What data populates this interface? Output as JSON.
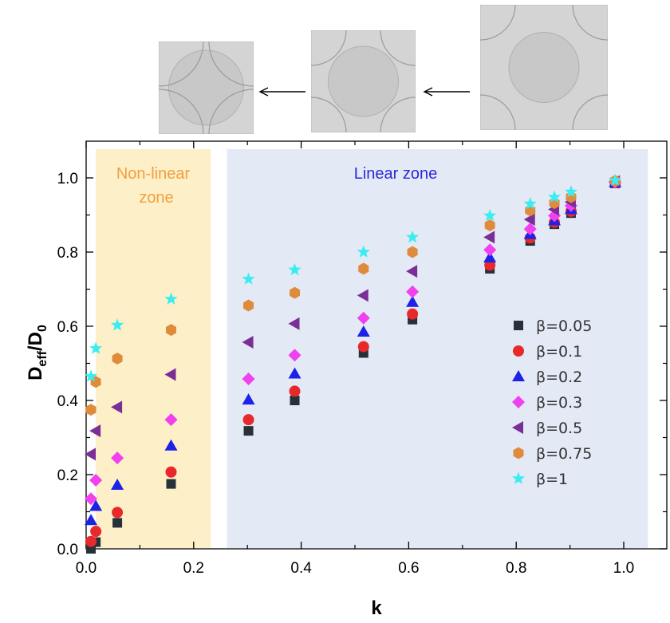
{
  "chart_data": {
    "type": "scatter",
    "xlabel": "k",
    "ylabel_main": "D",
    "ylabel_sub1": "eff",
    "ylabel_mid": "/D",
    "ylabel_sub2": "0",
    "xlim": [
      0.0,
      1.05
    ],
    "ylim": [
      0.0,
      1.1
    ],
    "x_ticks": [
      "0.0",
      "0.2",
      "0.4",
      "0.6",
      "0.8",
      "1.0"
    ],
    "y_ticks": [
      "0.0",
      "0.2",
      "0.4",
      "0.6",
      "0.8",
      "1.0"
    ],
    "grid": false,
    "legend_position": "right",
    "zones": [
      {
        "label_line1": "Non-linear",
        "label_line2": "zone",
        "x_start": 0.0,
        "x_end": 0.232,
        "fill": "#fdefc8",
        "text_color": "#f0a040"
      },
      {
        "label_line1": "Linear zone",
        "label_line2": "",
        "x_start": 0.262,
        "x_end": 1.045,
        "fill": "#e4e9f6",
        "text_color": "#2a2ad8"
      }
    ],
    "series": [
      {
        "name": "β=0.05",
        "marker": "square",
        "color": "#263238",
        "x": [
          0.0,
          0.018,
          0.058,
          0.158,
          0.302,
          0.388,
          0.516,
          0.607,
          0.751,
          0.826,
          0.871,
          0.902,
          0.984
        ],
        "y": [
          0.0,
          0.018,
          0.07,
          0.175,
          0.318,
          0.4,
          0.528,
          0.618,
          0.755,
          0.83,
          0.875,
          0.905,
          0.985
        ]
      },
      {
        "name": "β=0.1",
        "marker": "circle",
        "color": "#e8292c",
        "x": [
          0.0,
          0.018,
          0.058,
          0.158,
          0.302,
          0.388,
          0.516,
          0.607,
          0.751,
          0.826,
          0.871,
          0.902,
          0.984
        ],
        "y": [
          0.02,
          0.047,
          0.098,
          0.207,
          0.348,
          0.425,
          0.545,
          0.633,
          0.765,
          0.838,
          0.88,
          0.91,
          0.987
        ]
      },
      {
        "name": "β=0.2",
        "marker": "triangle-up",
        "color": "#1c22e6",
        "x": [
          0.0,
          0.018,
          0.058,
          0.158,
          0.302,
          0.388,
          0.516,
          0.607,
          0.751,
          0.826,
          0.871,
          0.902,
          0.984
        ],
        "y": [
          0.077,
          0.115,
          0.172,
          0.278,
          0.402,
          0.472,
          0.585,
          0.665,
          0.785,
          0.848,
          0.885,
          0.915,
          0.988
        ]
      },
      {
        "name": "β=0.3",
        "marker": "diamond",
        "color": "#f040f0",
        "x": [
          0.0,
          0.018,
          0.058,
          0.158,
          0.302,
          0.388,
          0.516,
          0.607,
          0.751,
          0.826,
          0.871,
          0.902,
          0.984
        ],
        "y": [
          0.135,
          0.185,
          0.245,
          0.348,
          0.458,
          0.522,
          0.622,
          0.693,
          0.806,
          0.862,
          0.898,
          0.925,
          0.988
        ]
      },
      {
        "name": "β=0.5",
        "marker": "triangle-left",
        "color": "#7a2e96",
        "x": [
          0.0,
          0.018,
          0.058,
          0.158,
          0.302,
          0.388,
          0.516,
          0.607,
          0.751,
          0.826,
          0.871,
          0.902,
          0.984
        ],
        "y": [
          0.255,
          0.318,
          0.382,
          0.47,
          0.557,
          0.607,
          0.683,
          0.748,
          0.84,
          0.888,
          0.915,
          0.935,
          0.99
        ]
      },
      {
        "name": "β=0.75",
        "marker": "hexagon",
        "color": "#e08b3c",
        "x": [
          0.0,
          0.018,
          0.058,
          0.158,
          0.302,
          0.388,
          0.516,
          0.607,
          0.751,
          0.826,
          0.871,
          0.902,
          0.984
        ],
        "y": [
          0.375,
          0.45,
          0.513,
          0.59,
          0.656,
          0.69,
          0.755,
          0.8,
          0.872,
          0.912,
          0.932,
          0.948,
          0.992
        ]
      },
      {
        "name": "β=1",
        "marker": "star",
        "color": "#3aeef0",
        "x": [
          0.0,
          0.018,
          0.058,
          0.158,
          0.302,
          0.388,
          0.516,
          0.607,
          0.751,
          0.826,
          0.871,
          0.902,
          0.984
        ],
        "y": [
          0.465,
          0.54,
          0.603,
          0.673,
          0.727,
          0.752,
          0.8,
          0.84,
          0.898,
          0.93,
          0.948,
          0.962,
          0.993
        ]
      }
    ]
  },
  "images": {
    "geometry_panels": [
      "geometry-panel-small",
      "geometry-panel-medium",
      "geometry-panel-large"
    ]
  },
  "colors": {
    "panel_fill": "#d4d4d4",
    "panel_border": "#b8b8b8",
    "inclusion_fill": "#c8c8c8",
    "inclusion_stroke": "#9a9a9a",
    "arrow": "#000000"
  }
}
